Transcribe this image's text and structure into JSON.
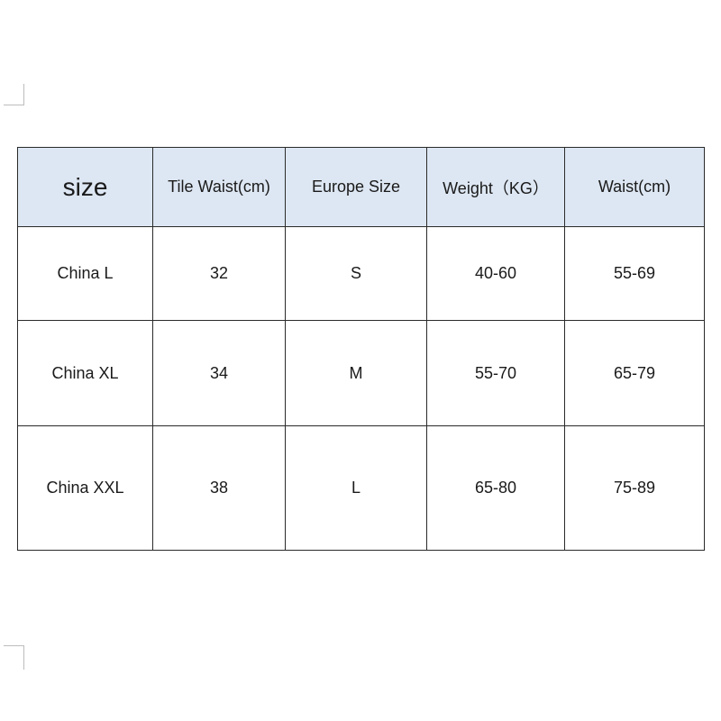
{
  "table": {
    "headers": [
      "size",
      "Tile Waist(cm)",
      "Europe Size",
      "Weight（KG）",
      "Waist(cm)"
    ],
    "rows": [
      [
        "China L",
        "32",
        "S",
        "40-60",
        "55-69"
      ],
      [
        "China XL",
        "34",
        "M",
        "55-70",
        "65-79"
      ],
      [
        "China XXL",
        "38",
        "L",
        "65-80",
        "75-89"
      ]
    ]
  },
  "colors": {
    "header_background": "#dde7f3",
    "border": "#2a2a2a"
  }
}
